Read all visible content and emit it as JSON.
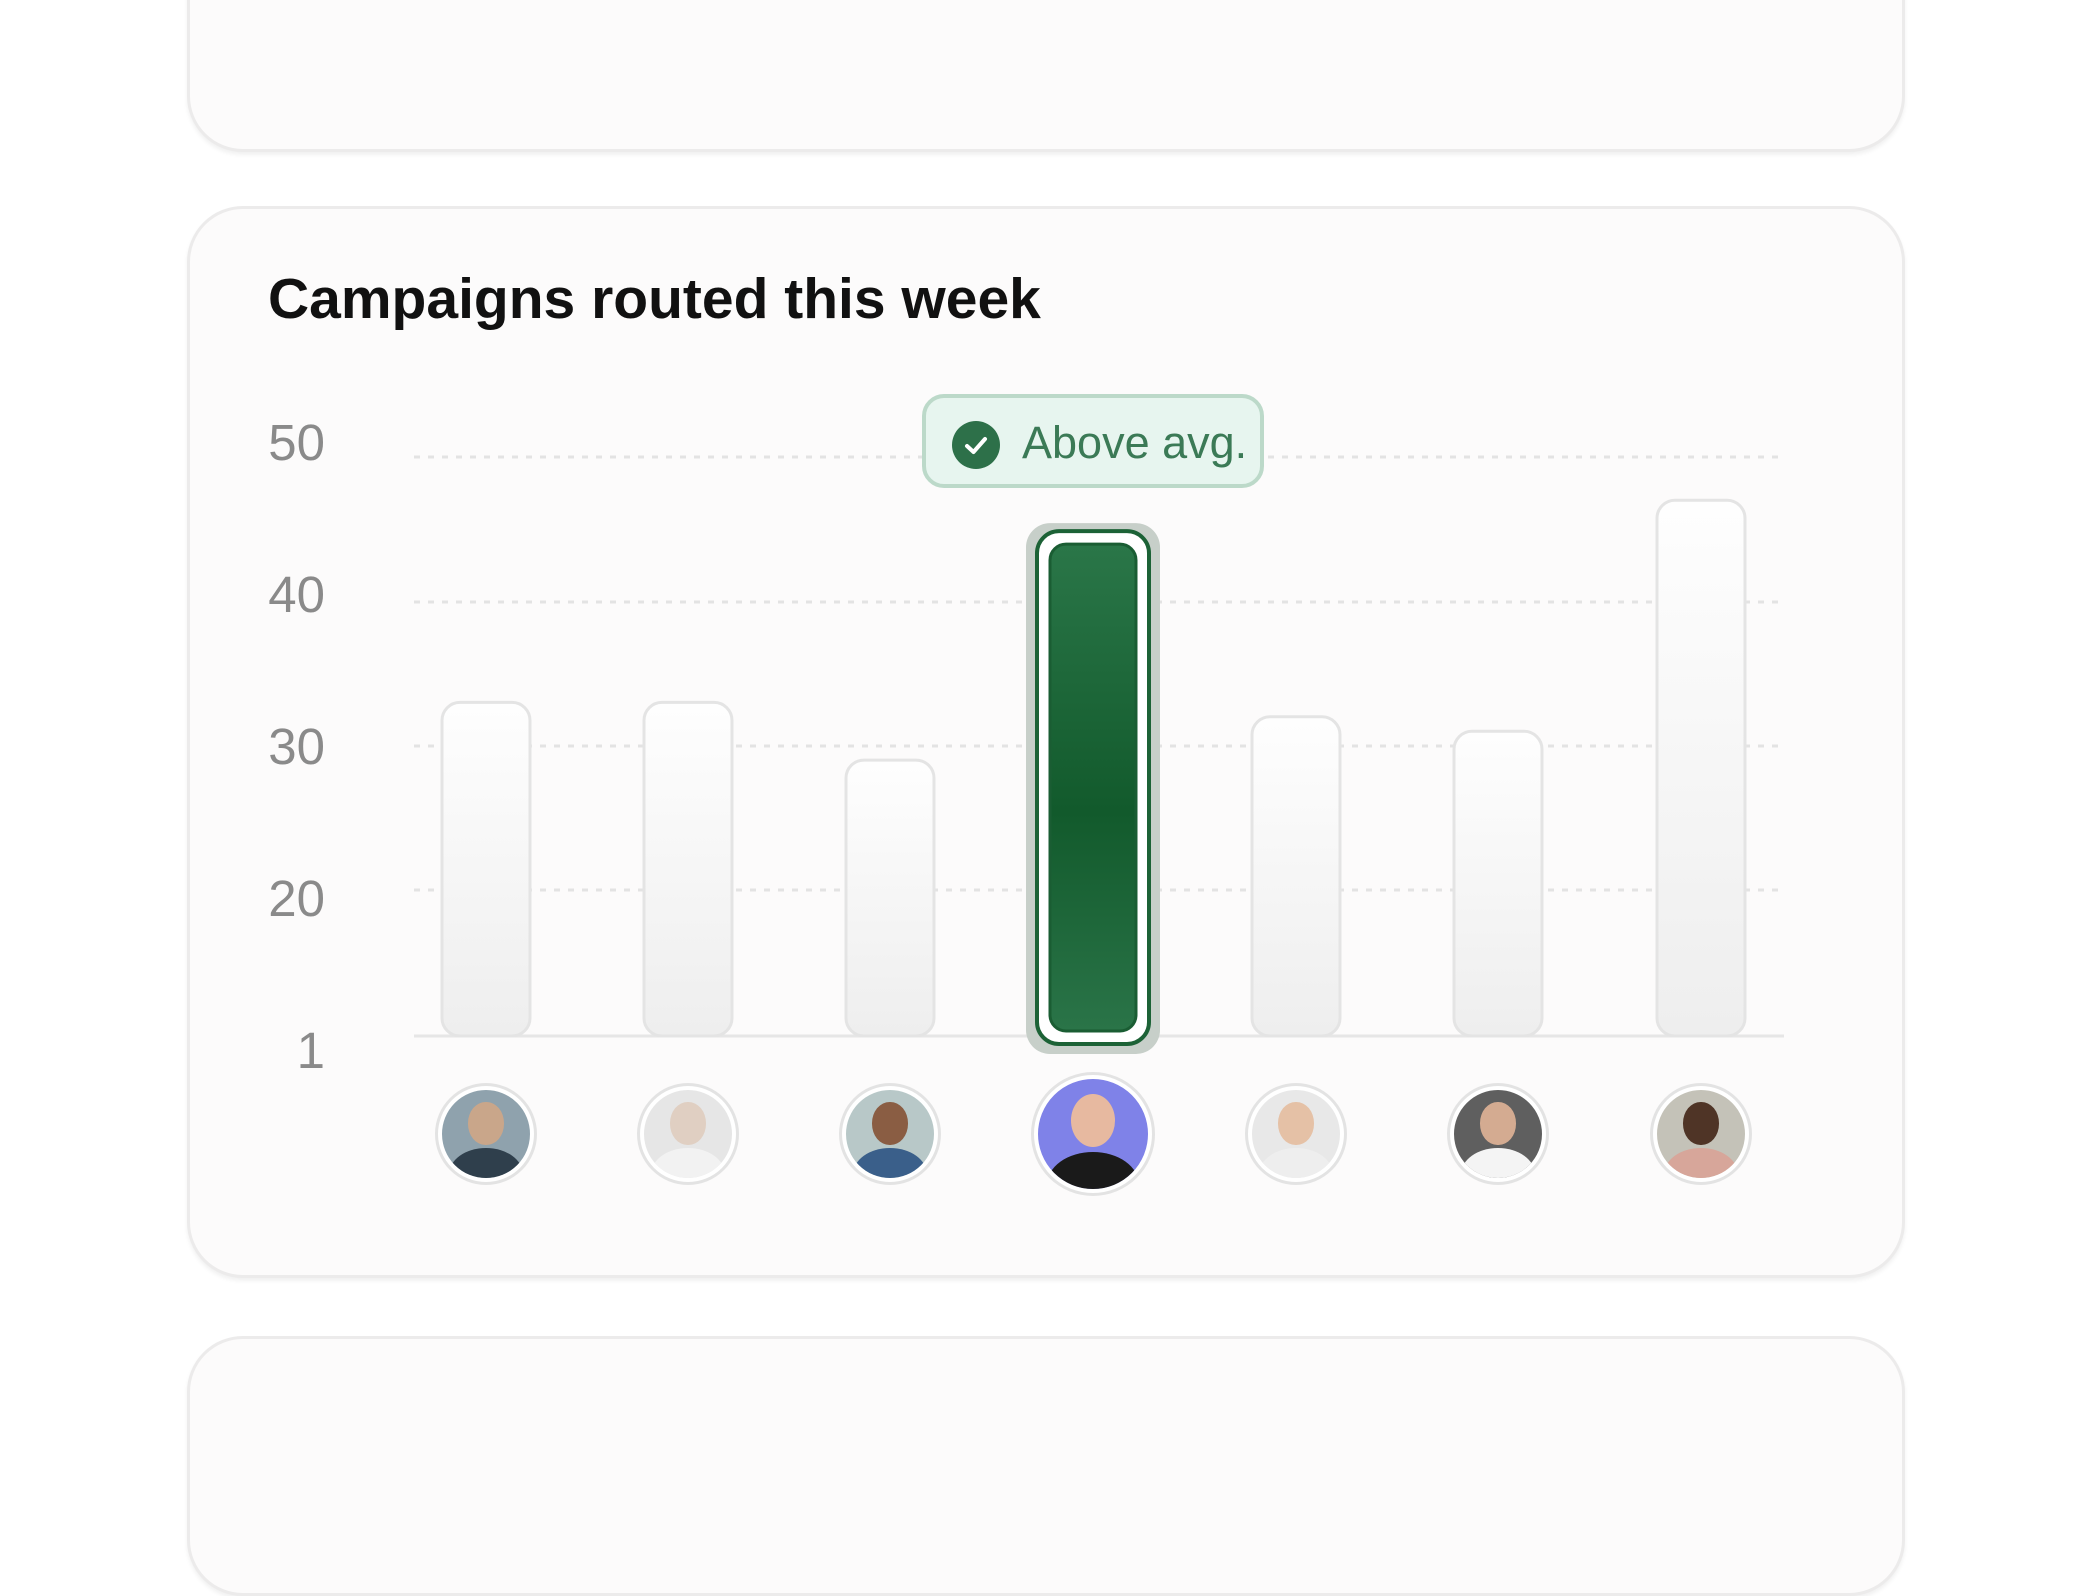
{
  "chart_data": {
    "type": "bar",
    "title": "Campaigns routed this week",
    "xlabel": "",
    "ylabel": "",
    "yticks": [
      "50",
      "40",
      "30",
      "20",
      "1"
    ],
    "ylim": [
      10,
      50
    ],
    "grid": true,
    "categories": [
      "",
      "",
      "",
      "",
      "",
      "",
      ""
    ],
    "values": [
      33,
      33,
      29,
      45,
      32,
      31,
      47
    ],
    "highlight_index": 3,
    "highlight_label": "Above avg.",
    "colors": {
      "highlight": "#1e6b3c",
      "bar": "#f3f3f3",
      "badge_bg": "#e7f5ef",
      "badge_text": "#3b7a56"
    }
  },
  "avatars": [
    {
      "icon": "avatar-person-1",
      "skin": "#c9a68a",
      "shirt": "#2f3f4c",
      "bg": "#8fa2ad"
    },
    {
      "icon": "avatar-person-2",
      "skin": "#e0cfc2",
      "shirt": "#f2f2f2",
      "bg": "#e6e6e6"
    },
    {
      "icon": "avatar-person-3",
      "skin": "#8a5d43",
      "shirt": "#3a5f8a",
      "bg": "#b8c8c8"
    },
    {
      "icon": "avatar-person-4",
      "skin": "#e7b9a0",
      "shirt": "#1a1a1a",
      "bg": "#7f82e8"
    },
    {
      "icon": "avatar-person-5",
      "skin": "#e5c1a6",
      "shirt": "#eeeeee",
      "bg": "#e8e8e8"
    },
    {
      "icon": "avatar-person-6",
      "skin": "#d4ab91",
      "shirt": "#f4f4f4",
      "bg": "#5f5f5f"
    },
    {
      "icon": "avatar-person-7",
      "skin": "#4f3426",
      "shirt": "#d7a69a",
      "bg": "#c4c2b8"
    }
  ]
}
